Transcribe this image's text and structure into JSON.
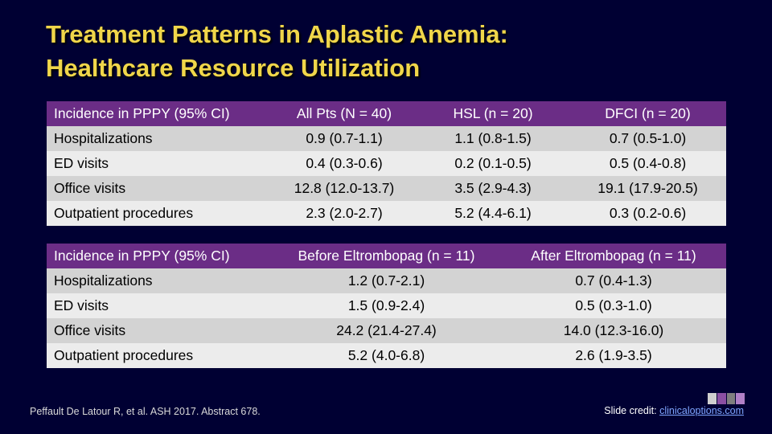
{
  "title": {
    "line1": "Treatment Patterns in Aplastic Anemia:",
    "line2": "Healthcare Resource Utilization"
  },
  "table1": {
    "headers": [
      "Incidence in PPPY (95% CI)",
      "All Pts (N = 40)",
      "HSL (n = 20)",
      "DFCI (n = 20)"
    ],
    "rows": [
      [
        "Hospitalizations",
        "0.9 (0.7-1.1)",
        "1.1 (0.8-1.5)",
        "0.7 (0.5-1.0)"
      ],
      [
        "ED visits",
        "0.4 (0.3-0.6)",
        "0.2 (0.1-0.5)",
        "0.5 (0.4-0.8)"
      ],
      [
        "Office visits",
        "12.8 (12.0-13.7)",
        "3.5 (2.9-4.3)",
        "19.1 (17.9-20.5)"
      ],
      [
        "Outpatient procedures",
        "2.3 (2.0-2.7)",
        "5.2 (4.4-6.1)",
        "0.3 (0.2-0.6)"
      ]
    ]
  },
  "table2": {
    "headers": [
      "Incidence in PPPY (95% CI)",
      "Before Eltrombopag (n = 11)",
      "After Eltrombopag (n = 11)"
    ],
    "rows": [
      [
        "Hospitalizations",
        "1.2 (0.7-2.1)",
        "0.7 (0.4-1.3)"
      ],
      [
        "ED visits",
        "1.5 (0.9-2.4)",
        "0.5 (0.3-1.0)"
      ],
      [
        "Office visits",
        "24.2 (21.4-27.4)",
        "14.0 (12.3-16.0)"
      ],
      [
        "Outpatient procedures",
        "5.2 (4.0-6.8)",
        "2.6 (1.9-3.5)"
      ]
    ]
  },
  "footnote": "Peffault De Latour R, et al. ASH 2017. Abstract 678.",
  "credit": {
    "prefix": "Slide credit: ",
    "link": "clinicaloptions.com"
  },
  "logo": {
    "name": "clinical-care-options-logo",
    "colors": [
      "#cfcfcf",
      "#8a4fa3",
      "#7f7f7f",
      "#b07fc7"
    ]
  },
  "colors": {
    "background": "#000033",
    "title": "#f0d64a",
    "header": "#6b2d86",
    "row_dark": "#d3d3d3",
    "row_light": "#ececec"
  }
}
